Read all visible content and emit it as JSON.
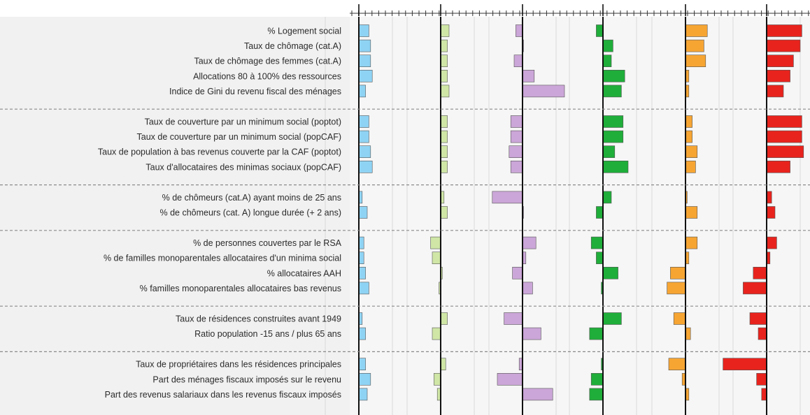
{
  "chart_data": {
    "type": "bar",
    "orientation": "horizontal",
    "grid": true,
    "panel_colors": [
      "#8fd3f4",
      "#cfe6a6",
      "#cba6d8",
      "#1fae3a",
      "#f6a533",
      "#e8231d"
    ],
    "groups": [
      {
        "rows": [
          {
            "label": "% Logement social",
            "values": [
              0.3,
              0.25,
              -0.2,
              -0.2,
              0.65,
              1.05
            ]
          },
          {
            "label": "Taux de chômage (cat.A)",
            "values": [
              0.35,
              0.2,
              0.0,
              0.3,
              0.55,
              1.0
            ]
          },
          {
            "label": "Taux de chômage des femmes (cat.A)",
            "values": [
              0.35,
              0.2,
              -0.25,
              0.25,
              0.6,
              0.8
            ]
          },
          {
            "label": "Allocations 80 à 100% des ressources",
            "values": [
              0.4,
              0.2,
              0.35,
              0.65,
              0.1,
              0.7
            ]
          },
          {
            "label": "Indice de Gini du revenu fiscal des ménages",
            "values": [
              0.2,
              0.25,
              1.25,
              0.55,
              0.1,
              0.5
            ]
          }
        ]
      },
      {
        "rows": [
          {
            "label": "Taux de couverture par un minimum social (poptot)",
            "values": [
              0.3,
              0.2,
              -0.35,
              0.6,
              0.2,
              1.05
            ]
          },
          {
            "label": "Taux de couverture par un minimum social (popCAF)",
            "values": [
              0.3,
              0.2,
              -0.35,
              0.6,
              0.2,
              1.05
            ]
          },
          {
            "label": "Taux de population à bas revenus couverte par la CAF (poptot)",
            "values": [
              0.35,
              0.2,
              -0.4,
              0.35,
              0.35,
              1.1
            ]
          },
          {
            "label": "Taux d'allocataires des minimas sociaux (popCAF)",
            "values": [
              0.4,
              0.2,
              -0.35,
              0.75,
              0.3,
              0.7
            ]
          }
        ]
      },
      {
        "rows": [
          {
            "label": "% de chômeurs (cat.A) ayant moins de 25 ans",
            "values": [
              0.1,
              0.1,
              -0.9,
              0.25,
              0.05,
              0.15
            ]
          },
          {
            "label": "% de chômeurs (cat. A) longue durée (+ 2 ans)",
            "values": [
              0.25,
              0.2,
              0.0,
              -0.2,
              0.35,
              0.25
            ]
          }
        ]
      },
      {
        "rows": [
          {
            "label": "% de personnes couvertes par le RSA",
            "values": [
              0.15,
              -0.3,
              0.4,
              -0.35,
              0.35,
              0.3
            ]
          },
          {
            "label": "% de familles monoparentales allocataires d'un minima social",
            "values": [
              0.15,
              -0.25,
              0.1,
              -0.2,
              0.1,
              0.1
            ]
          },
          {
            "label": "% allocataires AAH",
            "values": [
              0.2,
              0.05,
              -0.3,
              0.45,
              -0.45,
              -0.4
            ]
          },
          {
            "label": "% familles monoparentales allocataires bas revenus",
            "values": [
              0.3,
              -0.05,
              0.3,
              -0.05,
              -0.55,
              -0.7
            ]
          }
        ]
      },
      {
        "rows": [
          {
            "label": "Taux de résidences construites avant 1949",
            "values": [
              0.1,
              0.2,
              -0.55,
              0.55,
              -0.35,
              -0.5
            ]
          },
          {
            "label": "Ratio population -15 ans / plus 65 ans",
            "values": [
              0.2,
              -0.25,
              0.55,
              -0.4,
              0.15,
              -0.25
            ]
          }
        ]
      },
      {
        "rows": [
          {
            "label": "Taux de propriétaires dans les résidences principales",
            "values": [
              0.2,
              0.15,
              -0.1,
              -0.05,
              -0.5,
              -1.3
            ]
          },
          {
            "label": "Part des ménages fiscaux imposés sur le revenu",
            "values": [
              0.35,
              -0.2,
              -0.75,
              -0.35,
              -0.1,
              -0.3
            ]
          },
          {
            "label": "Part des revenus salariaux dans les revenus fiscaux imposés",
            "values": [
              0.25,
              -0.1,
              0.9,
              -0.4,
              0.1,
              -0.15
            ]
          }
        ]
      }
    ]
  }
}
